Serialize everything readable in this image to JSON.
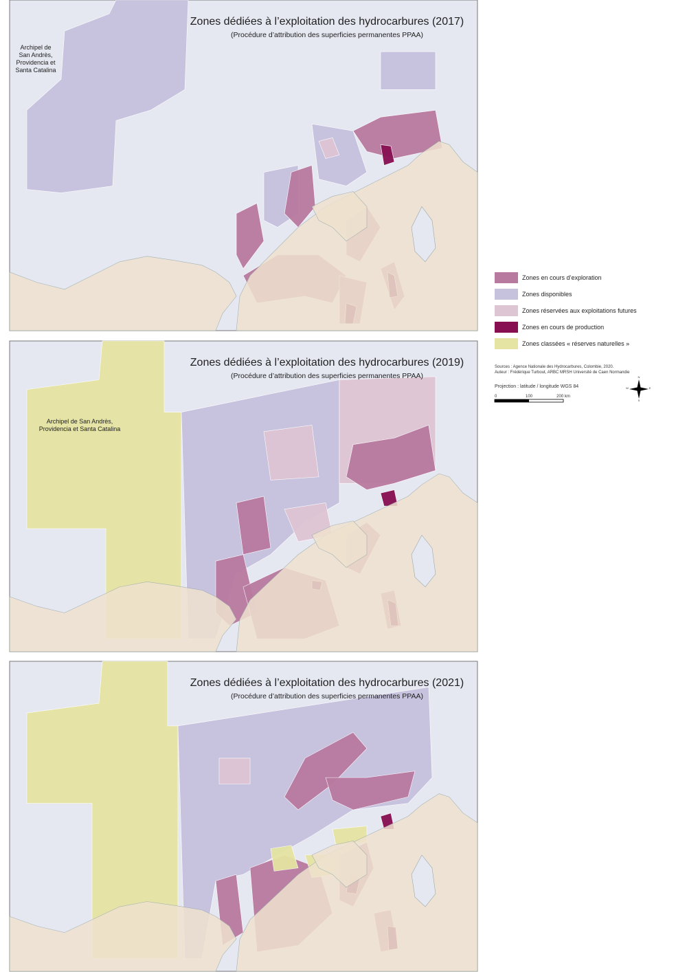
{
  "maps": [
    {
      "title": "Zones dédiées à l’exploitation des hydrocarbures (2017)",
      "subtitle": "(Procédure d’attribution des superficies permanentes PPAA)",
      "label": [
        "Archipel de",
        "San Andrès,",
        "Providencia et",
        "Santa Catalina"
      ]
    },
    {
      "title": "Zones dédiées à l’exploitation des hydrocarbures (2019)",
      "subtitle": "(Procédure d’attribution des superficies permanentes PPAA)",
      "label": [
        "Archipel de San Andrès,",
        "Providencia et Santa Catalina"
      ]
    },
    {
      "title": "Zones dédiées à l’exploitation des hydrocarbures (2021)",
      "subtitle": "(Procédure d’attribution des superficies permanentes PPAA)",
      "label": []
    }
  ],
  "legend": {
    "items": [
      {
        "label": "Zones en cours d’exploration",
        "color": "#b97aa0"
      },
      {
        "label": "Zones disponibles",
        "color": "#c6c1dd"
      },
      {
        "label": "Zones réservées aux exploitations futures",
        "color": "#dec5d4"
      },
      {
        "label": "Zones en cours de production",
        "color": "#870f52"
      },
      {
        "label": "Zones classées « réserves naturelles »",
        "color": "#e5e4a2"
      }
    ]
  },
  "sources": "Sources : Agence Nationale des Hydrocarbures, Colombie, 2020.",
  "author": "Auteur : Frédérique Turbout, ARBC MRSH Université de Caen Normandie",
  "projection": "Projection : latitude / longitude WGS 84",
  "scale": [
    "0",
    "100",
    "200 km"
  ],
  "compass": [
    "N",
    "E",
    "S",
    "W"
  ]
}
